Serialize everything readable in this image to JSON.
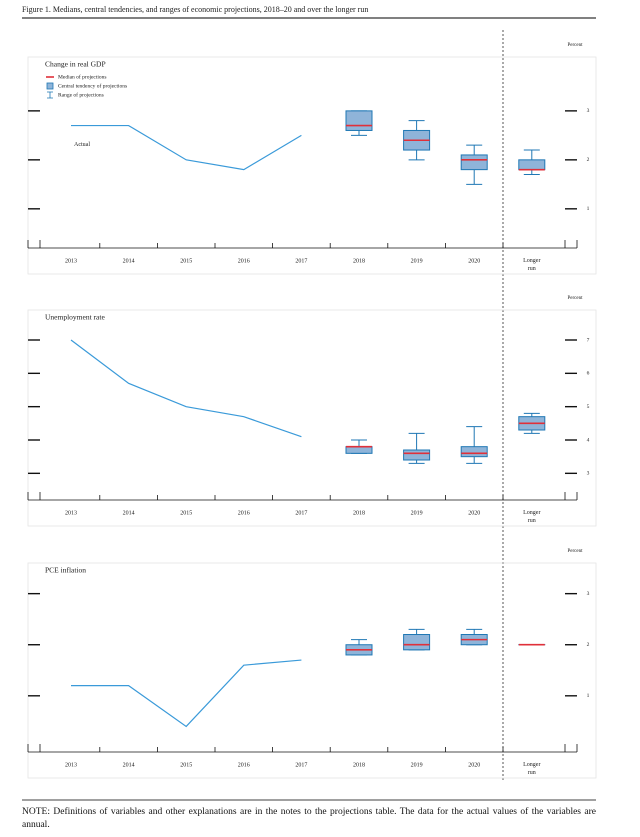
{
  "figure_title": "Figure 1. Medians, central tendencies, and ranges of economic projections, 2018–20 and over the longer run",
  "note": "NOTE: Definitions of variables and other explanations are in the notes to the projections table. The data for the actual values of the variables are annual.",
  "chart_data": [
    {
      "type": "projection",
      "title": "Change in real GDP",
      "unit": "Percent",
      "categories": [
        "2013",
        "2014",
        "2015",
        "2016",
        "2017",
        "2018",
        "2019",
        "2020",
        "Longer run"
      ],
      "annotation": "Actual",
      "legend": [
        "Median of projections",
        "Central tendency of projections",
        "Range of projections"
      ],
      "actual": [
        2.7,
        2.7,
        2.0,
        1.8,
        2.5,
        null,
        null,
        null,
        null
      ],
      "median": [
        null,
        null,
        null,
        null,
        null,
        2.7,
        2.4,
        2.0,
        1.8
      ],
      "central_low": [
        null,
        null,
        null,
        null,
        null,
        2.6,
        2.2,
        1.8,
        1.8
      ],
      "central_high": [
        null,
        null,
        null,
        null,
        null,
        3.0,
        2.6,
        2.1,
        2.0
      ],
      "range_low": [
        null,
        null,
        null,
        null,
        null,
        2.5,
        2.0,
        1.5,
        1.7
      ],
      "range_high": [
        null,
        null,
        null,
        null,
        null,
        3.0,
        2.8,
        2.3,
        2.2
      ],
      "ylim": [
        0.2,
        4.1
      ],
      "yticks": [
        1,
        2,
        3
      ],
      "line_color": "#3a9ad9",
      "median_color": "#e0303a",
      "box_color": "#8fb4d9",
      "box_stroke": "#1f77b4"
    },
    {
      "type": "projection",
      "title": "Unemployment rate",
      "unit": "Percent",
      "categories": [
        "2013",
        "2014",
        "2015",
        "2016",
        "2017",
        "2018",
        "2019",
        "2020",
        "Longer run"
      ],
      "actual": [
        7.0,
        5.7,
        5.0,
        4.7,
        4.1,
        null,
        null,
        null,
        null
      ],
      "median": [
        null,
        null,
        null,
        null,
        null,
        3.8,
        3.6,
        3.6,
        4.5
      ],
      "central_low": [
        null,
        null,
        null,
        null,
        null,
        3.6,
        3.4,
        3.5,
        4.3
      ],
      "central_high": [
        null,
        null,
        null,
        null,
        null,
        3.8,
        3.7,
        3.8,
        4.7
      ],
      "range_low": [
        null,
        null,
        null,
        null,
        null,
        3.6,
        3.3,
        3.3,
        4.2
      ],
      "range_high": [
        null,
        null,
        null,
        null,
        null,
        4.0,
        4.2,
        4.4,
        4.8
      ],
      "ylim": [
        2.2,
        7.9
      ],
      "yticks": [
        3,
        4,
        5,
        6,
        7
      ],
      "line_color": "#3a9ad9",
      "median_color": "#e0303a",
      "box_color": "#8fb4d9",
      "box_stroke": "#1f77b4"
    },
    {
      "type": "projection",
      "title": "PCE inflation",
      "unit": "Percent",
      "categories": [
        "2013",
        "2014",
        "2015",
        "2016",
        "2017",
        "2018",
        "2019",
        "2020",
        "Longer run"
      ],
      "actual": [
        1.2,
        1.2,
        0.4,
        1.6,
        1.7,
        null,
        null,
        null,
        null
      ],
      "median": [
        null,
        null,
        null,
        null,
        null,
        1.9,
        2.0,
        2.1,
        2.0
      ],
      "central_low": [
        null,
        null,
        null,
        null,
        null,
        1.8,
        1.9,
        2.0,
        2.0
      ],
      "central_high": [
        null,
        null,
        null,
        null,
        null,
        2.0,
        2.2,
        2.2,
        2.0
      ],
      "range_low": [
        null,
        null,
        null,
        null,
        null,
        1.8,
        1.9,
        2.0,
        2.0
      ],
      "range_high": [
        null,
        null,
        null,
        null,
        null,
        2.1,
        2.3,
        2.3,
        2.0
      ],
      "ylim": [
        -0.1,
        3.6
      ],
      "yticks": [
        1,
        2,
        3
      ],
      "line_color": "#3a9ad9",
      "median_color": "#e0303a",
      "box_color": "#8fb4d9",
      "box_stroke": "#1f77b4"
    }
  ]
}
